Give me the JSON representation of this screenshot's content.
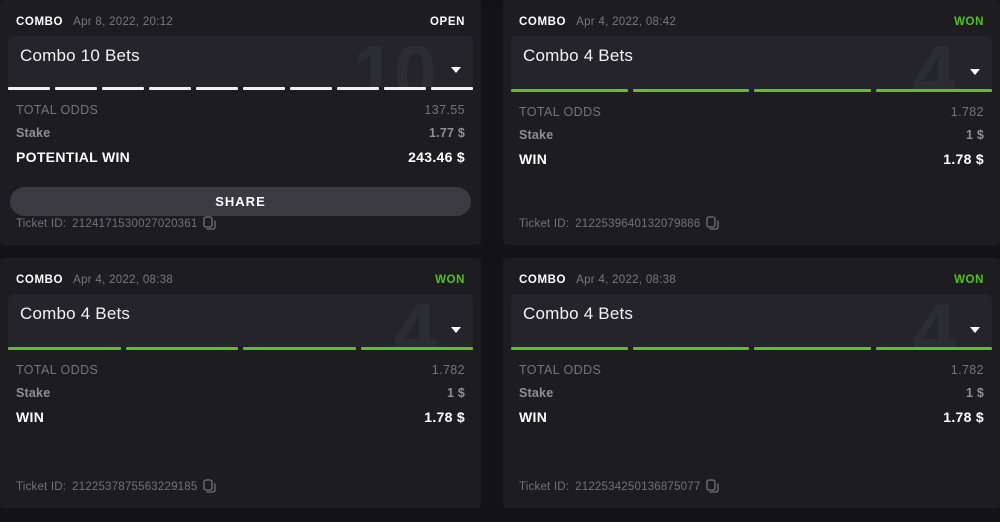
{
  "colors": {
    "green": "#5bc226",
    "open_segment": "#f2f2f2",
    "card_bg": "#1d1d21",
    "page_bg": "#131316"
  },
  "cards": [
    {
      "type_label": "COMBO",
      "date": "Apr 8, 2022, 20:12",
      "status": "OPEN",
      "status_type": "open",
      "title": "Combo 10 Bets",
      "watermark": "10",
      "segments": 10,
      "odds_label": "TOTAL ODDS",
      "odds_value": "137.55",
      "stake_label": "Stake",
      "stake_value": "1.77 $",
      "win_label": "POTENTIAL WIN",
      "win_value": "243.46 $",
      "share_label": "SHARE",
      "has_share": true,
      "ticket_label": "Ticket ID:",
      "ticket_id": "2124171530027020361"
    },
    {
      "type_label": "COMBO",
      "date": "Apr 4, 2022, 08:42",
      "status": "WON",
      "status_type": "won",
      "title": "Combo 4 Bets",
      "watermark": "4",
      "segments": 4,
      "odds_label": "TOTAL ODDS",
      "odds_value": "1.782",
      "stake_label": "Stake",
      "stake_value": "1 $",
      "win_label": "WIN",
      "win_value": "1.78 $",
      "share_label": "",
      "has_share": false,
      "ticket_label": "Ticket ID:",
      "ticket_id": "2122539640132079886"
    },
    {
      "type_label": "COMBO",
      "date": "Apr 4, 2022, 08:38",
      "status": "WON",
      "status_type": "won",
      "title": "Combo 4 Bets",
      "watermark": "4",
      "segments": 4,
      "odds_label": "TOTAL ODDS",
      "odds_value": "1.782",
      "stake_label": "Stake",
      "stake_value": "1 $",
      "win_label": "WIN",
      "win_value": "1.78 $",
      "share_label": "",
      "has_share": false,
      "ticket_label": "Ticket ID:",
      "ticket_id": "2122537875563229185"
    },
    {
      "type_label": "COMBO",
      "date": "Apr 4, 2022, 08:38",
      "status": "WON",
      "status_type": "won",
      "title": "Combo 4 Bets",
      "watermark": "4",
      "segments": 4,
      "odds_label": "TOTAL ODDS",
      "odds_value": "1.782",
      "stake_label": "Stake",
      "stake_value": "1 $",
      "win_label": "WIN",
      "win_value": "1.78 $",
      "share_label": "",
      "has_share": false,
      "ticket_label": "Ticket ID:",
      "ticket_id": "2122534250136875077"
    }
  ]
}
